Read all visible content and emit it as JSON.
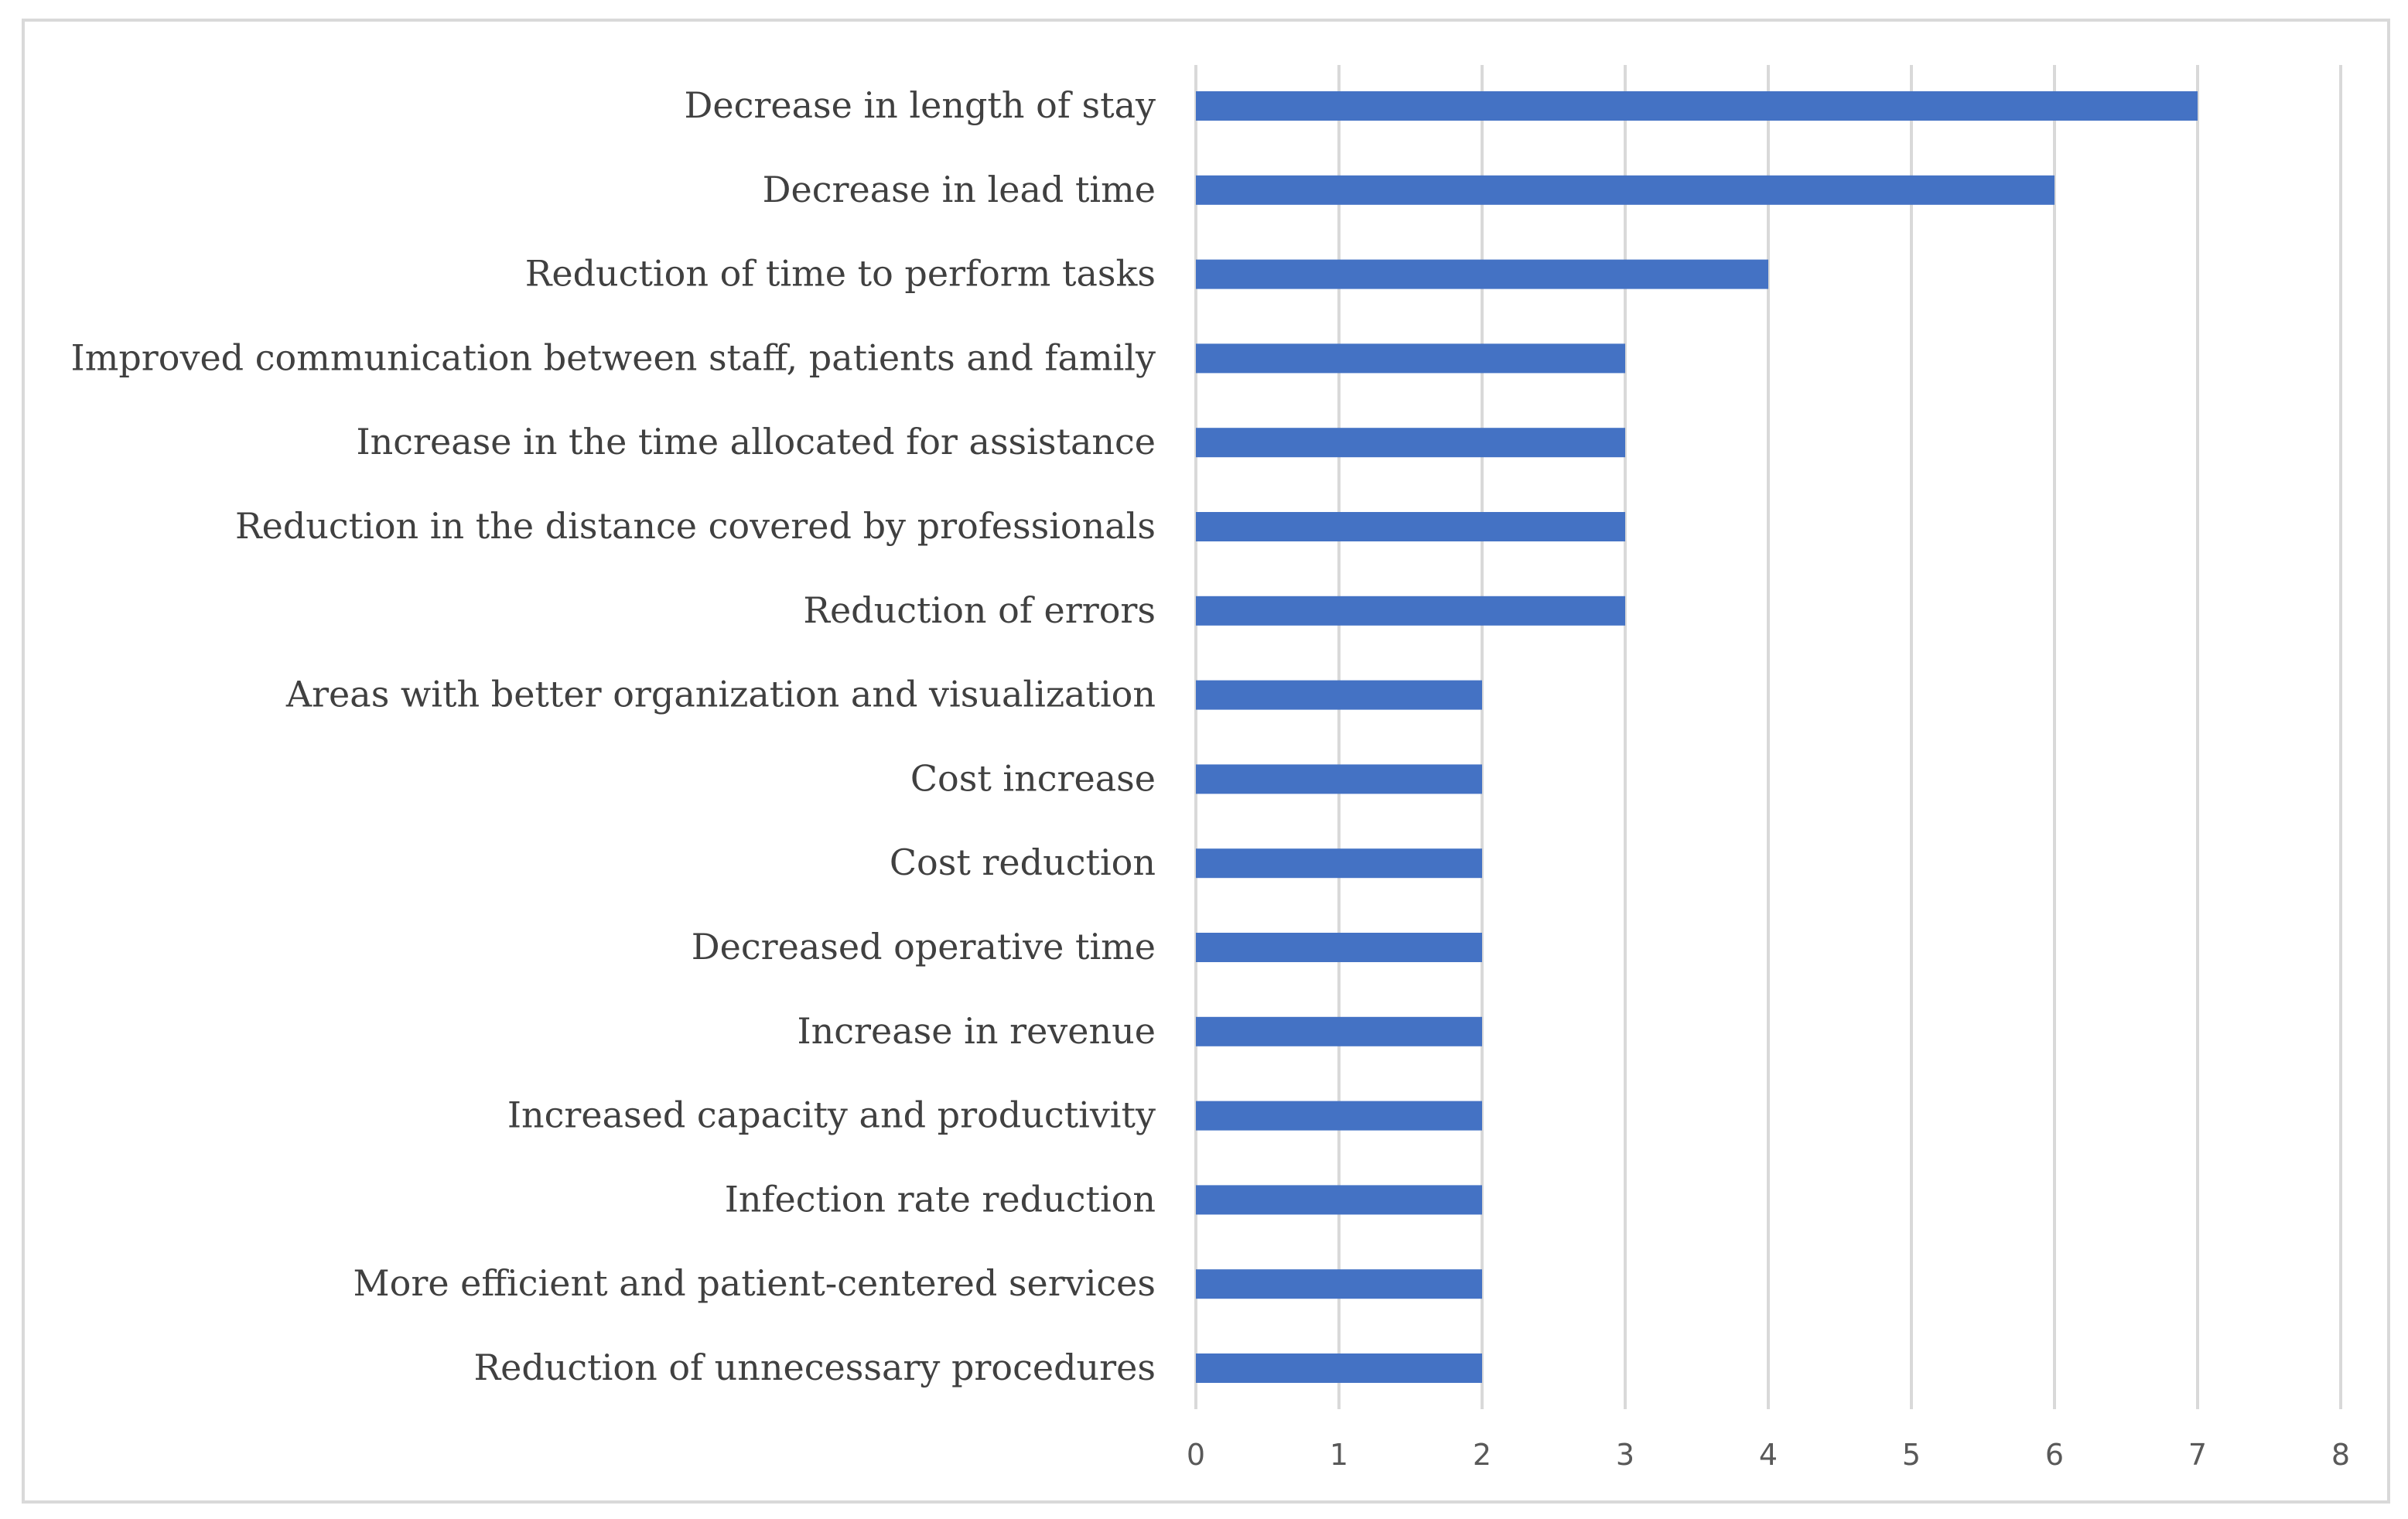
{
  "chart_data": {
    "type": "bar",
    "orientation": "horizontal",
    "title": "",
    "xlabel": "",
    "ylabel": "",
    "xlim": [
      0,
      8
    ],
    "x_ticks": [
      "0",
      "1",
      "2",
      "3",
      "4",
      "5",
      "6",
      "7",
      "8"
    ],
    "grid": true,
    "legend": "none",
    "bar_color": "#4472c4",
    "categories": [
      "Decrease in length of stay",
      "Decrease in lead time",
      "Reduction of time to perform tasks",
      "Improved communication between staff, patients and family",
      "Increase in the time allocated for assistance",
      "Reduction in the distance covered by professionals",
      "Reduction of errors",
      "Areas with better organization and visualization",
      "Cost increase",
      "Cost reduction",
      "Decreased operative time",
      "Increase in revenue",
      "Increased capacity and productivity",
      "Infection rate reduction",
      "More efficient and patient-centered services",
      "Reduction of unnecessary procedures"
    ],
    "values": [
      7,
      6,
      4,
      3,
      3,
      3,
      3,
      2,
      2,
      2,
      2,
      2,
      2,
      2,
      2,
      2
    ]
  }
}
